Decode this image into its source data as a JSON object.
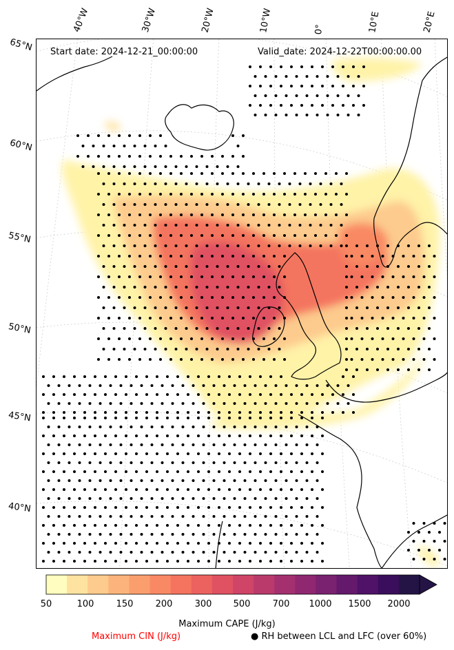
{
  "header": {
    "start_date": "Start date: 2024-12-21_00:00:00",
    "valid_date": "Valid_date: 2024-12-22T00:00:00.00"
  },
  "lon_labels": [
    "40°W",
    "30°W",
    "20°W",
    "10°W",
    "0°",
    "10°E",
    "20°E"
  ],
  "lat_labels": [
    "65°N",
    "60°N",
    "55°N",
    "50°N",
    "45°N",
    "40°N"
  ],
  "colorbar": {
    "ticks": [
      "50",
      "100",
      "150",
      "200",
      "300",
      "500",
      "700",
      "1000",
      "1500",
      "2000"
    ],
    "colors": [
      "#fffdbf",
      "#fee3a0",
      "#fdcb8d",
      "#fcb47c",
      "#fb9e6e",
      "#f98964",
      "#f4745f",
      "#ec625f",
      "#e05162",
      "#cf4467",
      "#ba3a6c",
      "#a5306f",
      "#8f2870",
      "#7a216f",
      "#64196d",
      "#4f1268",
      "#3a0e5c",
      "#241445"
    ],
    "label": "Maximum CAPE (J/kg)"
  },
  "legend": {
    "cin_label": "Maximum CIN (J/kg)",
    "cin_color": "#ff0000",
    "rh_label": "● RH between LCL and LFC (over 60%)"
  }
}
